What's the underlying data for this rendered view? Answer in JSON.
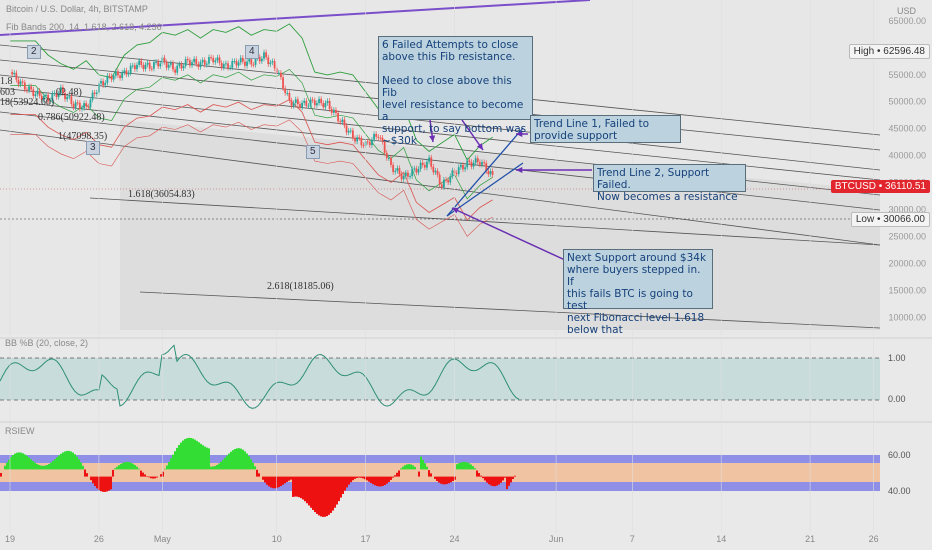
{
  "header": {
    "title": "Bitcoin / U.S. Dollar, 4h, BITSTAMP",
    "indicator": "Fib Bands 200, 14, 1.618, 2.618, 4.236",
    "currency": "USD"
  },
  "colors": {
    "background": "#e9e9e9",
    "candle_up": "#26a69a",
    "candle_down": "#ef5350",
    "annotation_box": "#bcd3df",
    "annotation_text": "#15407a",
    "arrow": "#6a2fb3",
    "trend_line": "#1f4fa8",
    "last_price": "#e2262d",
    "rsi_up_fill": "#33dd33",
    "rsi_down_fill": "#ee1111",
    "band_blue": "#8f8fe8",
    "band_orange": "#f0c3a3"
  },
  "price_tags": {
    "high": "High • 62596.48",
    "last": "BTCUSD • 36110.51",
    "low": "Low • 30066.00"
  },
  "annotations": [
    {
      "id": "fib-attempts",
      "text": "6 Failed Attempts to close\nabove this Fib resistance.\n\nNeed to close above this Fib\nlevel resistance to become a\nsupport, to say bottom was\n~$30k"
    },
    {
      "id": "trend-1",
      "text": "Trend Line 1, Failed to\nprovide support"
    },
    {
      "id": "trend-2",
      "text": "Trend Line 2, Support Failed.\nNow becomes a resistance"
    },
    {
      "id": "next-support",
      "text": "Next Support around $34k\nwhere buyers stepped in. If\nthis fails BTC is going to test\nnext Fibonacci level 1.618\nbelow that"
    }
  ],
  "wave_labels": [
    "2",
    "3",
    "4",
    "5"
  ],
  "fib_labels": {
    "l0786": "0.786(50922.48)",
    "l1": "1(47098.35)",
    "l1618": "1.618(36054.83)",
    "l2618": "2.618(18185.06)",
    "left_a": "1.8",
    "left_b": "603",
    "left_c": "18(53924.60)",
    "left_d": "02.48)"
  },
  "indicators": {
    "bb_label": "BB %B (20, close, 2)",
    "bb_ticks": [
      "1.00",
      "0.00"
    ],
    "rsi_label": "RSIEW",
    "rsi_ticks": [
      "60.00",
      "40.00"
    ]
  },
  "chart_data": {
    "type": "line",
    "title": "Bitcoin / U.S. Dollar, 4h, BITSTAMP",
    "y_axis_ticks": [
      65000,
      60000,
      55000,
      50000,
      45000,
      40000,
      35000,
      30000,
      25000,
      20000,
      15000,
      10000
    ],
    "y_axis_tick_labels": [
      "65000.00",
      "60000.00",
      "55000.00",
      "50000.00",
      "45000.00",
      "40000.00",
      "35000.00",
      "30000.00",
      "25000.00",
      "20000.00",
      "15000.00",
      "10000.00"
    ],
    "ylim": [
      9000,
      67000
    ],
    "x_axis_labels": [
      "19",
      "26",
      "May",
      "10",
      "17",
      "24",
      "Jun",
      "7",
      "14",
      "21",
      "26"
    ],
    "x_axis_label_offsets_days": [
      0,
      7,
      12,
      21,
      28,
      35,
      43,
      49,
      56,
      63,
      68
    ],
    "price_series": {
      "name": "BTCUSD",
      "x_days": [
        0,
        1,
        2,
        3,
        4,
        5,
        6,
        7,
        8,
        9,
        10,
        11,
        12,
        13,
        14,
        15,
        16,
        17,
        18,
        19,
        20,
        21,
        22,
        23,
        24,
        25,
        26,
        27,
        28,
        29,
        30,
        31,
        32,
        33,
        34,
        35,
        36,
        37,
        38
      ],
      "close": [
        55500,
        53000,
        51500,
        50500,
        52000,
        49500,
        49000,
        53000,
        54800,
        55200,
        57000,
        56500,
        57500,
        56000,
        57500,
        57000,
        58000,
        56500,
        57500,
        57200,
        58500,
        56000,
        50000,
        49500,
        50000,
        49500,
        46500,
        43500,
        42000,
        44000,
        38000,
        36000,
        37500,
        39000,
        34500,
        37000,
        38500,
        39000,
        36110.51
      ]
    },
    "fib_levels": [
      {
        "ratio": "0.786",
        "value": 50922.48
      },
      {
        "ratio": "1",
        "value": 47098.35
      },
      {
        "ratio": "1.618",
        "value": 36054.83
      },
      {
        "ratio": "2.618",
        "value": 18185.06
      },
      {
        "ratio": "1.618 (upper)",
        "value": 53924.6
      }
    ],
    "high": 62596.48,
    "low": 30066.0,
    "last": 36110.51,
    "bb_percent_b": {
      "ylim": [
        -0.3,
        1.3
      ],
      "upper": 1.0,
      "lower": 0.0
    },
    "rsi": {
      "ylim": [
        25,
        75
      ],
      "upper": 60,
      "lower": 40
    }
  }
}
